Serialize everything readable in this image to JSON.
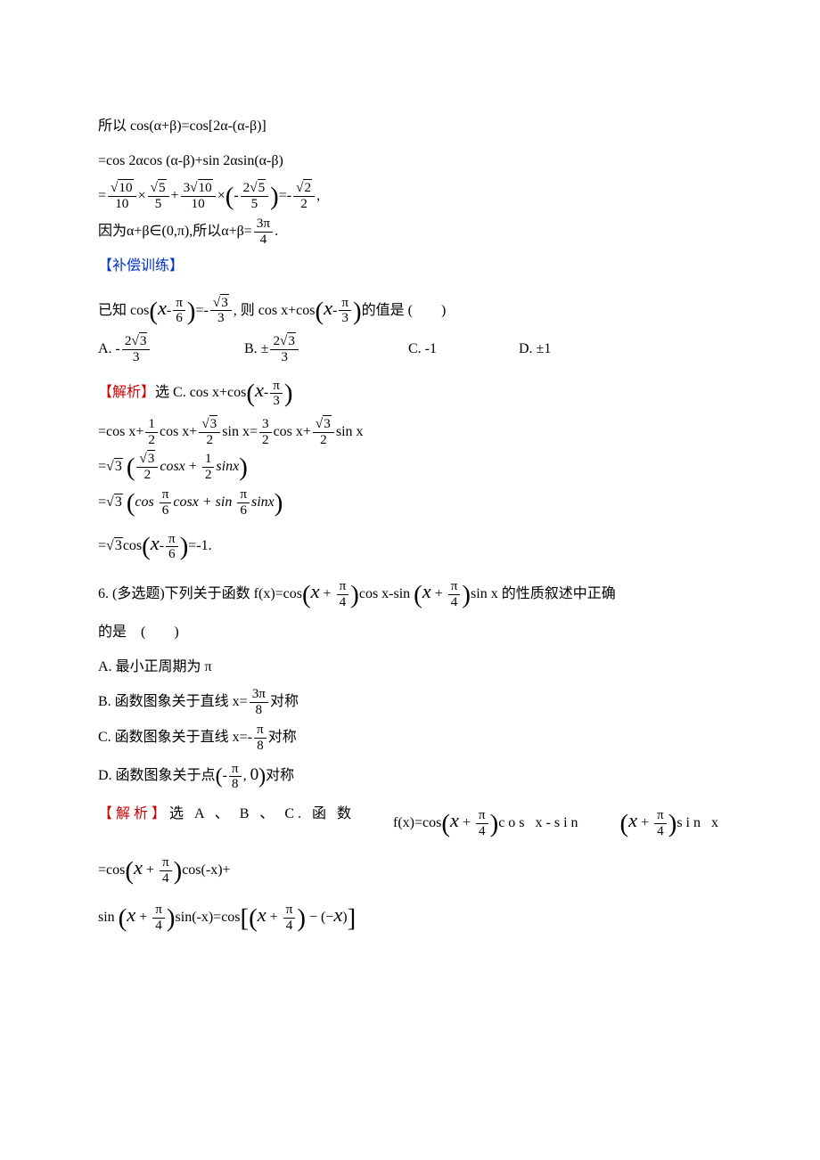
{
  "colors": {
    "text": "#000000",
    "blue": "#0033cc",
    "red": "#cc0000",
    "background": "#ffffff"
  },
  "typography": {
    "body_font": "SimSun",
    "math_font": "Times New Roman",
    "script_font": "Brush Script MT",
    "base_size_pt": 12,
    "line_height": 2.2
  },
  "l1": "所以 cos(α+β)=cos[2α-(α-β)]",
  "l2": "=cos 2αcos (α-β)+sin 2αsin(α-β)",
  "eq3": {
    "t1_num": "10",
    "t1_rad": "10",
    "t1_den": "10",
    "t2_rad": "5",
    "t2_den": "5",
    "t3_num": "3",
    "t3_rad": "10",
    "t3_den": "10",
    "t4_num": "2",
    "t4_rad": "5",
    "t4_den": "5",
    "t5_rad": "2",
    "t5_den": "2"
  },
  "l4a": "因为α+β∈(0,π),所以α+β=",
  "l4_num": "3π",
  "l4_den": "4",
  "l4b": ".",
  "supp": "【补偿训练】",
  "q_pre": "已知 cos",
  "q_f1_num": "π",
  "q_f1_den": "6",
  "q_mid": "=-",
  "q_f2_rad": "3",
  "q_f2_den": "3",
  "q_mid2": ", 则 cos x+cos",
  "q_f3_num": "π",
  "q_f3_den": "3",
  "q_post": "的值是 (　　)",
  "optA_pre": "A. -",
  "optA_num": "2",
  "optA_rad": "3",
  "optA_den": "3",
  "optB_pre": "B. ±",
  "optB_num": "2",
  "optB_rad": "3",
  "optB_den": "3",
  "optC": "C. -1",
  "optD": "D. ±1",
  "ans_pre": "【解析】",
  "ans_sel": "选 C. cos x+cos",
  "s1": {
    "pre": "=cos x+",
    "f1n": "1",
    "f1d": "2",
    "m1": "cos x+",
    "f2r": "3",
    "f2d": "2",
    "m2": "sin x=",
    "f3n": "3",
    "f3d": "2",
    "m3": "cos x+",
    "f4r": "3",
    "f4d": "2",
    "m4": "sin x"
  },
  "s2": {
    "pre": "=",
    "root": "3",
    "f1r": "3",
    "f1d": "2",
    "t1": "cosx",
    "plus": " + ",
    "f2n": "1",
    "f2d": "2",
    "t2": "sinx"
  },
  "s3": {
    "pre": "=",
    "root": "3",
    "t1": "cos ",
    "f1n": "π",
    "f1d": "6",
    "t2": "cosx",
    "plus": " + sin ",
    "f2n": "π",
    "f2d": "6",
    "t3": "sinx"
  },
  "s4": {
    "pre": "=",
    "root": "3",
    "t1": "cos",
    "fn": "π",
    "fd": "6",
    "post": "=-1."
  },
  "q6_pre": "6. (多选题)下列关于函数 f(x)=cos",
  "q6_f_num": "π",
  "q6_f_den": "4",
  "q6_mid": "cos x-sin ",
  "q6_post": "sin x 的性质叙述中正确",
  "q6_line2": "的是　(　　)",
  "q6A": "A. 最小正周期为 π",
  "q6B_pre": "B. 函数图象关于直线 x=",
  "q6B_num": "3π",
  "q6B_den": "8",
  "q6B_post": "对称",
  "q6C_pre": "C. 函数图象关于直线 x=-",
  "q6C_num": "π",
  "q6C_den": "8",
  "q6C_post": "对称",
  "q6D_pre": "D. 函数图象关于点",
  "q6D_f1": "π",
  "q6D_f1d": "8",
  "q6D_post": "对称",
  "a6_pre": "【解析】",
  "a6_sel": "选 A 、 B 、 C. 函 数",
  "a6_t1": "  f(x)=cos",
  "a6_mid": "cos x-sin ",
  "a6_post": "sin x",
  "a6_l2_pre": "=cos",
  "a6_l2_post": "cos(-x)+",
  "a6_l3_pre": "sin ",
  "a6_l3_mid": "sin(-x)=cos"
}
